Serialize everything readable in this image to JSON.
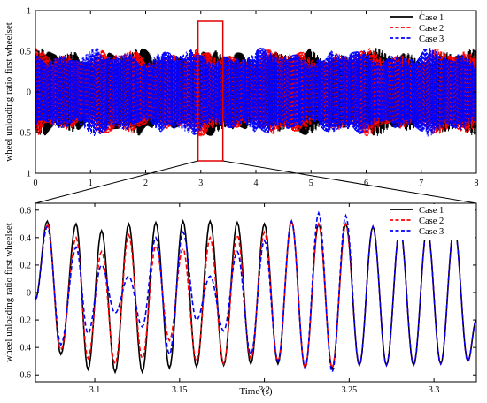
{
  "chart_data": [
    {
      "type": "line",
      "title": "",
      "xlabel": "",
      "ylabel": "wheel unloading ratio first wheelset",
      "xlim": [
        0,
        8
      ],
      "ylim": [
        -1,
        1
      ],
      "x_ticks": [
        "0",
        "1",
        "2",
        "3",
        "4",
        "5",
        "6",
        "7",
        "8"
      ],
      "y_ticks": [
        "1",
        "0.5",
        "0",
        "0.5",
        "1"
      ],
      "grid": false,
      "legend_position": "top-right",
      "series": [
        {
          "name": "Case 1",
          "color": "#000000",
          "style": "solid",
          "envelope": [
            -0.55,
            0.55
          ]
        },
        {
          "name": "Case 2",
          "color": "#ff0000",
          "style": "dashed",
          "envelope": [
            -0.55,
            0.55
          ]
        },
        {
          "name": "Case 3",
          "color": "#0000ff",
          "style": "dashed",
          "envelope": [
            -0.55,
            0.55
          ]
        }
      ],
      "zoom_box": {
        "x": [
          2.95,
          3.4
        ],
        "y": [
          -0.85,
          1.3
        ]
      }
    },
    {
      "type": "line",
      "title": "",
      "xlabel": "Time (s)",
      "ylabel": "wheel unloading ratio first wheelset",
      "xlim": [
        3.065,
        3.325
      ],
      "ylim": [
        -0.65,
        0.65
      ],
      "x_ticks": [
        "3.1",
        "3.15",
        "3.2",
        "3.25",
        "3.3"
      ],
      "y_ticks": [
        "0.6",
        "0.4",
        "0.2",
        "0",
        "0.2",
        "0.4",
        "0.6"
      ],
      "grid": false,
      "legend_position": "top-right",
      "series": [
        {
          "name": "Case 1",
          "color": "#000000",
          "style": "solid",
          "peaks": [
            [
              3.072,
              0.52
            ],
            [
              3.08,
              -0.45
            ],
            [
              3.089,
              0.5
            ],
            [
              3.096,
              -0.56
            ],
            [
              3.104,
              0.45
            ],
            [
              3.112,
              -0.58
            ],
            [
              3.12,
              0.5
            ],
            [
              3.128,
              -0.58
            ],
            [
              3.136,
              0.51
            ],
            [
              3.144,
              -0.55
            ],
            [
              3.152,
              0.52
            ],
            [
              3.16,
              -0.54
            ],
            [
              3.168,
              0.52
            ],
            [
              3.176,
              -0.53
            ],
            [
              3.184,
              0.51
            ],
            [
              3.192,
              -0.52
            ],
            [
              3.2,
              0.5
            ],
            [
              3.208,
              -0.52
            ],
            [
              3.216,
              0.52
            ],
            [
              3.224,
              -0.55
            ],
            [
              3.232,
              0.5
            ],
            [
              3.24,
              -0.55
            ],
            [
              3.248,
              0.5
            ],
            [
              3.256,
              -0.53
            ],
            [
              3.264,
              0.48
            ],
            [
              3.272,
              -0.53
            ],
            [
              3.28,
              0.47
            ],
            [
              3.288,
              -0.53
            ],
            [
              3.296,
              0.47
            ],
            [
              3.304,
              -0.52
            ],
            [
              3.312,
              0.48
            ],
            [
              3.32,
              -0.5
            ]
          ]
        },
        {
          "name": "Case 2",
          "color": "#ff0000",
          "style": "dashed",
          "peaks": [
            [
              3.072,
              0.5
            ],
            [
              3.08,
              -0.42
            ],
            [
              3.089,
              0.4
            ],
            [
              3.096,
              -0.48
            ],
            [
              3.104,
              0.3
            ],
            [
              3.112,
              -0.52
            ],
            [
              3.12,
              0.42
            ],
            [
              3.128,
              -0.48
            ],
            [
              3.136,
              0.34
            ],
            [
              3.144,
              -0.35
            ],
            [
              3.152,
              0.32
            ],
            [
              3.16,
              -0.5
            ],
            [
              3.168,
              0.4
            ],
            [
              3.176,
              -0.52
            ],
            [
              3.184,
              0.42
            ],
            [
              3.192,
              -0.48
            ],
            [
              3.2,
              0.44
            ],
            [
              3.208,
              -0.5
            ],
            [
              3.216,
              0.52
            ],
            [
              3.224,
              -0.55
            ],
            [
              3.232,
              0.5
            ],
            [
              3.24,
              -0.55
            ],
            [
              3.248,
              0.5
            ],
            [
              3.256,
              -0.53
            ],
            [
              3.264,
              0.48
            ],
            [
              3.272,
              -0.53
            ],
            [
              3.28,
              0.47
            ],
            [
              3.288,
              -0.53
            ],
            [
              3.296,
              0.47
            ],
            [
              3.304,
              -0.52
            ],
            [
              3.312,
              0.48
            ],
            [
              3.32,
              -0.5
            ]
          ]
        },
        {
          "name": "Case 3",
          "color": "#0000ff",
          "style": "dashed",
          "peaks": [
            [
              3.072,
              0.48
            ],
            [
              3.08,
              -0.38
            ],
            [
              3.089,
              0.33
            ],
            [
              3.096,
              -0.3
            ],
            [
              3.104,
              0.2
            ],
            [
              3.112,
              -0.15
            ],
            [
              3.12,
              0.12
            ],
            [
              3.128,
              -0.25
            ],
            [
              3.136,
              0.4
            ],
            [
              3.144,
              -0.45
            ],
            [
              3.152,
              0.44
            ],
            [
              3.16,
              -0.2
            ],
            [
              3.168,
              0.12
            ],
            [
              3.176,
              -0.28
            ],
            [
              3.184,
              0.3
            ],
            [
              3.192,
              -0.45
            ],
            [
              3.2,
              0.38
            ],
            [
              3.208,
              -0.5
            ],
            [
              3.216,
              0.52
            ],
            [
              3.224,
              -0.55
            ],
            [
              3.232,
              0.58
            ],
            [
              3.24,
              -0.58
            ],
            [
              3.248,
              0.56
            ],
            [
              3.256,
              -0.53
            ],
            [
              3.264,
              0.48
            ],
            [
              3.272,
              -0.53
            ],
            [
              3.28,
              0.47
            ],
            [
              3.288,
              -0.53
            ],
            [
              3.296,
              0.47
            ],
            [
              3.304,
              -0.52
            ],
            [
              3.312,
              0.48
            ],
            [
              3.32,
              -0.5
            ]
          ]
        }
      ]
    }
  ]
}
